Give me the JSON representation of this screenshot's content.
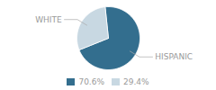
{
  "chart_data": {
    "type": "pie",
    "categories": [
      "HISPANIC",
      "WHITE"
    ],
    "values": [
      70.6,
      29.4
    ],
    "value_labels": [
      "70.6%",
      "29.4%"
    ],
    "colors": [
      "#336e8e",
      "#c8d8e2"
    ],
    "legend": "bottom"
  }
}
